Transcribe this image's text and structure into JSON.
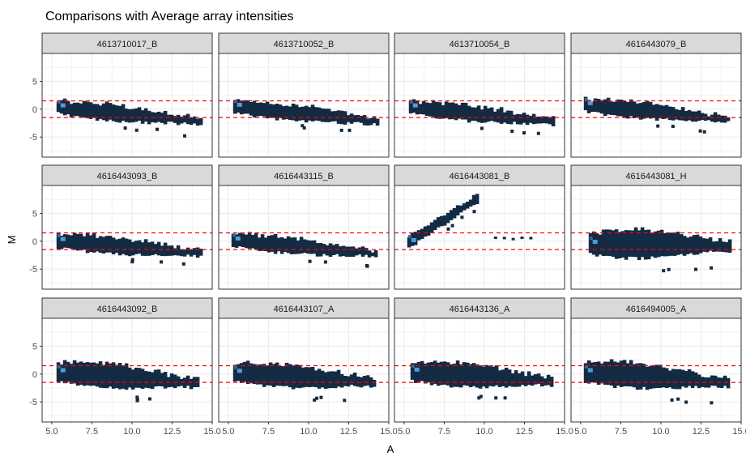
{
  "chart_data": {
    "type": "heatmap",
    "title": "Comparisons with Average array intensities",
    "xlabel": "A",
    "ylabel": "M",
    "xlim": [
      4.4,
      15.0
    ],
    "ylim": [
      -8.6,
      10.0
    ],
    "x_ticks": [
      5.0,
      7.5,
      10.0,
      12.5,
      15.0
    ],
    "x_tick_labels": [
      "5.0",
      "7.5",
      "10.0",
      "12.5",
      "15.0"
    ],
    "y_ticks": [
      -5,
      0,
      5
    ],
    "y_tick_labels": [
      "-5",
      "0",
      "5"
    ],
    "reference_lines": [
      1.5,
      -1.5
    ],
    "grid": true,
    "colors": {
      "density_fill": "#132b43",
      "density_peak": "#56b1f7",
      "reference_line": "#ff0000",
      "strip_fill": "#d9d9d9",
      "grid_line": "#ebebeb"
    },
    "panels": [
      {
        "label": "4613710017_B",
        "shape": "standard",
        "x_range": [
          5.3,
          14.2
        ],
        "y_center_start": 0.8,
        "y_center_end": -1.8,
        "y_spread": 1.4,
        "max_M": 3.0,
        "min_M": -4.5
      },
      {
        "label": "4613710052_B",
        "shape": "standard",
        "x_range": [
          5.3,
          14.3
        ],
        "y_center_start": 0.9,
        "y_center_end": -1.8,
        "y_spread": 1.4,
        "max_M": 3.2,
        "min_M": -3.5
      },
      {
        "label": "4613710054_B",
        "shape": "standard",
        "x_range": [
          5.3,
          14.3
        ],
        "y_center_start": 0.8,
        "y_center_end": -1.8,
        "y_spread": 1.4,
        "max_M": 3.0,
        "min_M": -4.5
      },
      {
        "label": "4616443079_B",
        "shape": "standard",
        "x_range": [
          5.2,
          14.1
        ],
        "y_center_start": 1.2,
        "y_center_end": -1.3,
        "y_spread": 1.4,
        "max_M": 3.2,
        "min_M": -3.8
      },
      {
        "label": "4616443093_B",
        "shape": "standard",
        "x_range": [
          5.3,
          14.2
        ],
        "y_center_start": 0.5,
        "y_center_end": -1.6,
        "y_spread": 1.5,
        "max_M": 3.0,
        "min_M": -4.5
      },
      {
        "label": "4616443115_B",
        "shape": "standard",
        "x_range": [
          5.2,
          14.2
        ],
        "y_center_start": 0.6,
        "y_center_end": -1.8,
        "y_spread": 1.4,
        "max_M": 3.0,
        "min_M": -4.2
      },
      {
        "label": "4616443081_B",
        "shape": "diagonal",
        "x_range": [
          5.2,
          9.5
        ],
        "y_center_start": 0.3,
        "y_center_end": 8.2,
        "y_spread": 1.0,
        "max_M": 8.8,
        "min_M": -0.6,
        "outlier_x": [
          10.6,
          13.3
        ],
        "outlier_y": 0.7
      },
      {
        "label": "4616443081_H",
        "shape": "wide",
        "x_range": [
          5.5,
          14.3
        ],
        "y_center_start": 0.0,
        "y_center_end": -0.4,
        "y_spread": 2.6,
        "max_M": 4.0,
        "min_M": -7.8
      },
      {
        "label": "4616443092_B",
        "shape": "standard",
        "x_range": [
          5.3,
          14.0
        ],
        "y_center_start": 0.8,
        "y_center_end": -1.2,
        "y_spread": 2.2,
        "max_M": 4.5,
        "min_M": -5.0
      },
      {
        "label": "4616443107_A",
        "shape": "standard",
        "x_range": [
          5.3,
          14.1
        ],
        "y_center_start": 0.7,
        "y_center_end": -1.0,
        "y_spread": 2.1,
        "max_M": 4.3,
        "min_M": -4.7
      },
      {
        "label": "4616443136_A",
        "shape": "standard",
        "x_range": [
          5.4,
          14.2
        ],
        "y_center_start": 0.9,
        "y_center_end": -0.8,
        "y_spread": 2.2,
        "max_M": 4.0,
        "min_M": -4.0
      },
      {
        "label": "4616494005_A",
        "shape": "standard",
        "x_range": [
          5.2,
          14.1
        ],
        "y_center_start": 0.8,
        "y_center_end": -1.0,
        "y_spread": 2.3,
        "max_M": 4.2,
        "min_M": -5.0
      }
    ]
  }
}
